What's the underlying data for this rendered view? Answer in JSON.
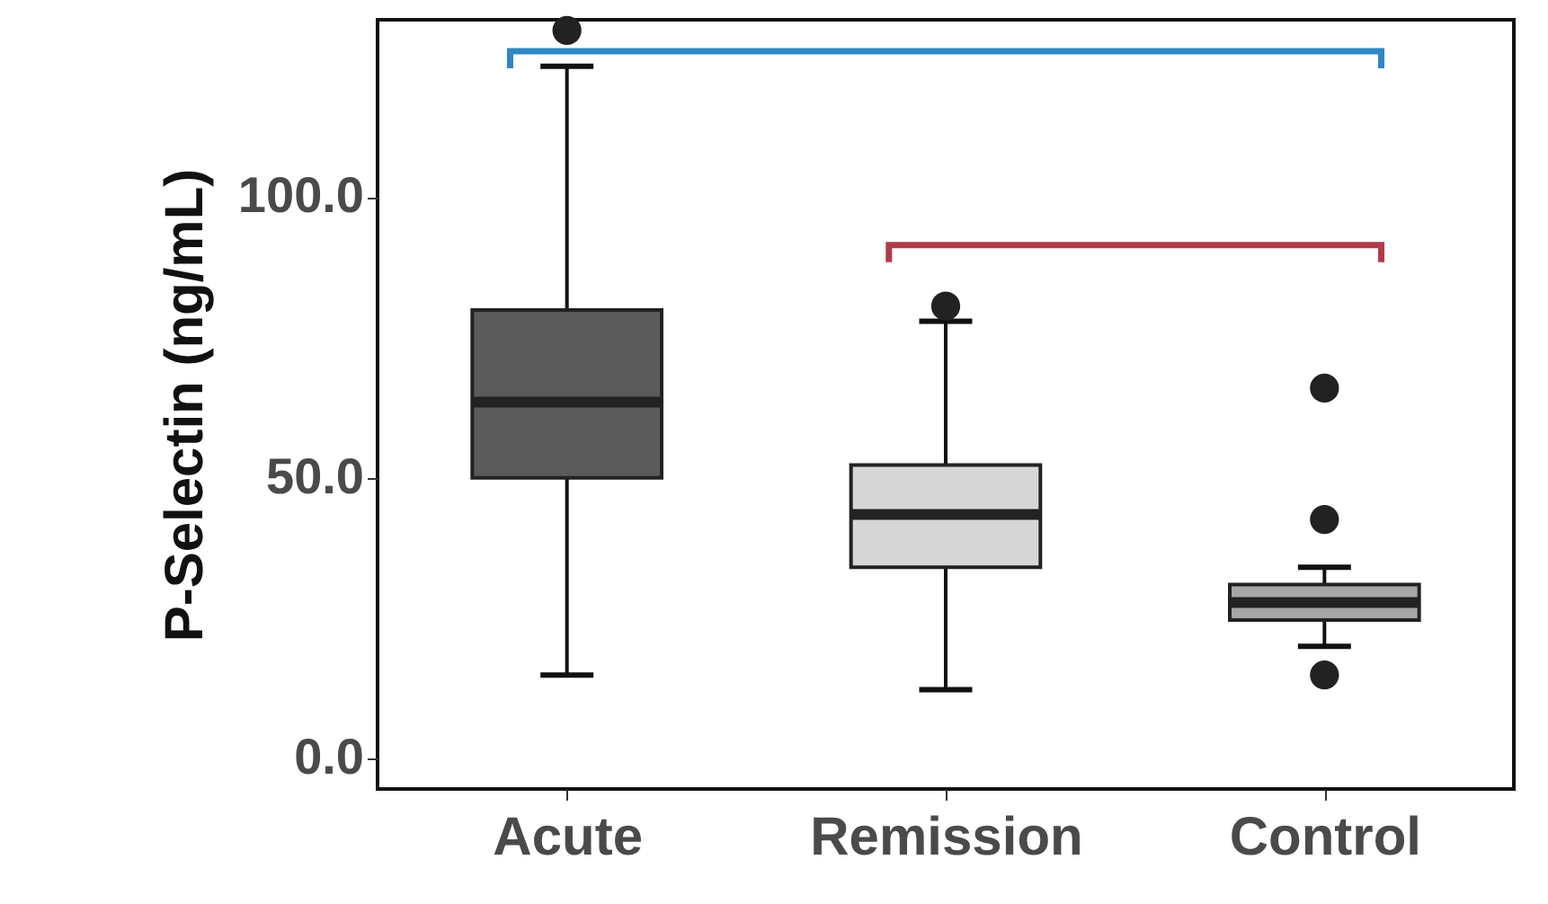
{
  "chart_data": {
    "type": "box",
    "ylabel": "P-Selectin (ng/mL)",
    "categories": [
      "Acute",
      "Remission",
      "Control"
    ],
    "boxes": [
      {
        "low": 14.9,
        "q1": 50.0,
        "median": 63.5,
        "q3": 79.9,
        "high": 123.3,
        "outliers": [
          129.7
        ]
      },
      {
        "low": 12.3,
        "q1": 34.1,
        "median": 43.5,
        "q3": 52.3,
        "high": 77.9,
        "outliers": [
          80.6
        ]
      },
      {
        "low": 20.0,
        "q1": 24.7,
        "median": 27.8,
        "q3": 31.0,
        "high": 34.1,
        "outliers": [
          66.0,
          42.6,
          14.9
        ]
      }
    ],
    "colors": [
      "#5a5a5a",
      "#d6d6d6",
      "#a6a6a6"
    ],
    "ylim": [
      -5.4,
      131.6
    ],
    "yticks": [
      {
        "value": 0,
        "label": "0.0"
      },
      {
        "value": 50,
        "label": "50.0"
      },
      {
        "value": 100,
        "label": "100.0"
      }
    ],
    "grid": false,
    "legend": false
  }
}
